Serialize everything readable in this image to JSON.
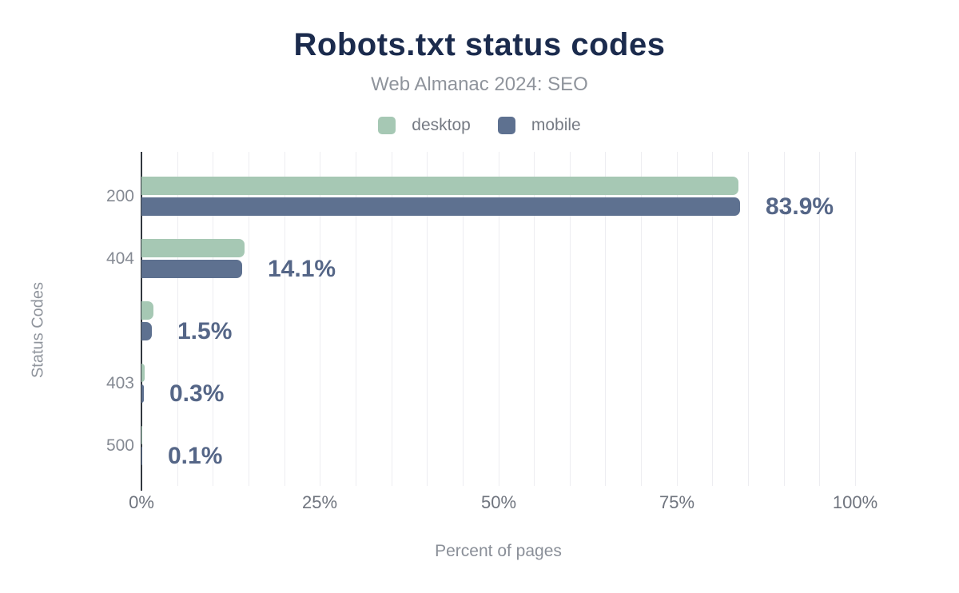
{
  "figure": {
    "title": "Robots.txt status codes",
    "subtitle": "Web Almanac 2024: SEO"
  },
  "legend": [
    {
      "label": "desktop",
      "color": "#a6c8b4"
    },
    {
      "label": "mobile",
      "color": "#5e7190"
    }
  ],
  "colors": {
    "title": "#1b2b4d",
    "desktop": "#a6c8b4",
    "mobile": "#5e7190",
    "value_label": "#556687",
    "axis_line": "#32383f",
    "gridline": "#ededf1",
    "muted_text": "#8f949c"
  },
  "chart_data": {
    "type": "bar",
    "orientation": "horizontal",
    "title": "Robots.txt status codes",
    "subtitle": "Web Almanac 2024: SEO",
    "xlabel": "Percent of pages",
    "ylabel": "Status Codes",
    "xlim": [
      0,
      100
    ],
    "xticks": [
      "0%",
      "25%",
      "50%",
      "75%",
      "100%"
    ],
    "grid": "vertical, minor lines every 5%",
    "legend_position": "top",
    "categories": [
      "200",
      "404",
      "",
      "403",
      "500"
    ],
    "series": [
      {
        "name": "desktop",
        "color": "#a6c8b4",
        "values": [
          83.6,
          14.4,
          1.7,
          0.4,
          0.1
        ]
      },
      {
        "name": "mobile",
        "color": "#5e7190",
        "values": [
          83.9,
          14.1,
          1.5,
          0.3,
          0.1
        ]
      }
    ],
    "value_labels": [
      "83.9%",
      "14.1%",
      "1.5%",
      "0.3%",
      "0.1%"
    ],
    "value_labels_refer_to": "mobile"
  }
}
